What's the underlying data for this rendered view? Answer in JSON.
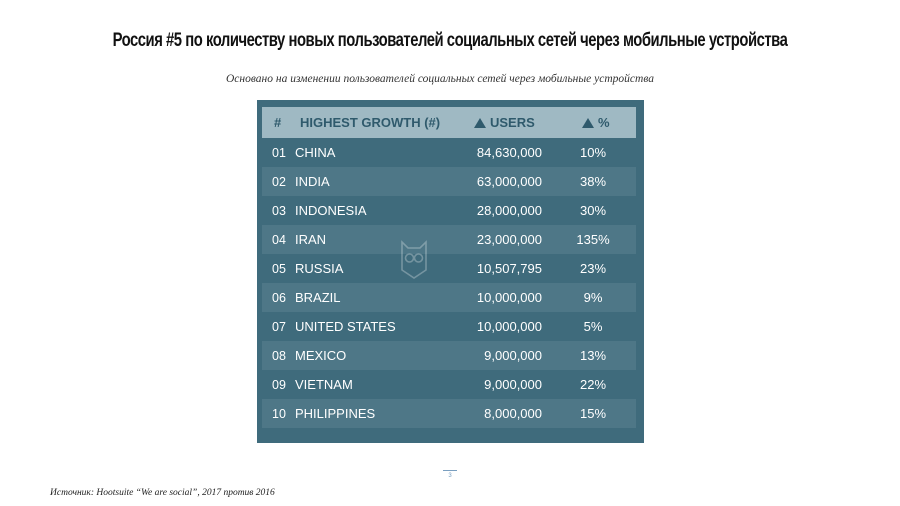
{
  "title": "Россия #5 по количеству новых пользователей социальных сетей через мобильные устройства",
  "subtitle": "Основано на изменении пользователей социальных сетей через мобильные устройства",
  "table": {
    "headers": {
      "num": "#",
      "country": "HIGHEST GROWTH (#)",
      "users": "USERS",
      "pct": "%"
    },
    "rows": [
      {
        "num": "01",
        "country": "CHINA",
        "users": "84,630,000",
        "pct": "10%"
      },
      {
        "num": "02",
        "country": "INDIA",
        "users": "63,000,000",
        "pct": "38%"
      },
      {
        "num": "03",
        "country": "INDONESIA",
        "users": "28,000,000",
        "pct": "30%"
      },
      {
        "num": "04",
        "country": "IRAN",
        "users": "23,000,000",
        "pct": "135%"
      },
      {
        "num": "05",
        "country": "RUSSIA",
        "users": "10,507,795",
        "pct": "23%"
      },
      {
        "num": "06",
        "country": "BRAZIL",
        "users": "10,000,000",
        "pct": "9%"
      },
      {
        "num": "07",
        "country": "UNITED STATES",
        "users": "10,000,000",
        "pct": "5%"
      },
      {
        "num": "08",
        "country": "MEXICO",
        "users": "9,000,000",
        "pct": "13%"
      },
      {
        "num": "09",
        "country": "VIETNAM",
        "users": "9,000,000",
        "pct": "22%"
      },
      {
        "num": "10",
        "country": "PHILIPPINES",
        "users": "8,000,000",
        "pct": "15%"
      }
    ],
    "colors": {
      "background": "#3f6b7c",
      "header": "#9fb9c3",
      "header_text": "#2f5a6c",
      "alt_row": "#4e7787"
    }
  },
  "watermark_icon": "owl-logo-icon",
  "footer": {
    "source": "Источник: Hootsuite “We are social”, 2017 против 2016",
    "page_number": "3"
  }
}
